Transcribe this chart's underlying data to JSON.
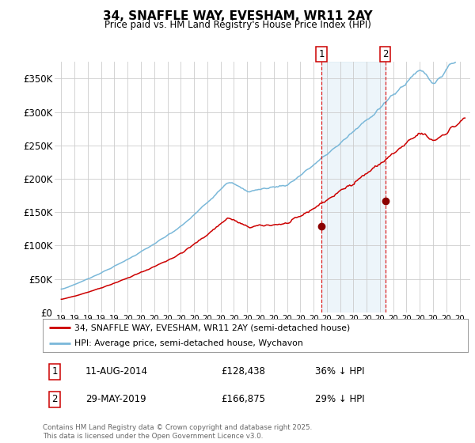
{
  "title": "34, SNAFFLE WAY, EVESHAM, WR11 2AY",
  "subtitle": "Price paid vs. HM Land Registry's House Price Index (HPI)",
  "legend_label_red": "34, SNAFFLE WAY, EVESHAM, WR11 2AY (semi-detached house)",
  "legend_label_blue": "HPI: Average price, semi-detached house, Wychavon",
  "annotation1_date": "11-AUG-2014",
  "annotation1_price": "£128,438",
  "annotation1_hpi": "36% ↓ HPI",
  "annotation1_year": 2014.6,
  "annotation1_value": 128438,
  "annotation2_date": "29-MAY-2019",
  "annotation2_price": "£166,875",
  "annotation2_hpi": "29% ↓ HPI",
  "annotation2_year": 2019.4,
  "annotation2_value": 166875,
  "shade_start": 2014.6,
  "shade_end": 2019.4,
  "hpi_color": "#7ab8d9",
  "price_color": "#cc0000",
  "dot_color": "#8b0000",
  "background_color": "#ffffff",
  "grid_color": "#cccccc",
  "footer": "Contains HM Land Registry data © Crown copyright and database right 2025.\nThis data is licensed under the Open Government Licence v3.0.",
  "ylim": [
    0,
    375000
  ],
  "yticks": [
    0,
    50000,
    100000,
    150000,
    200000,
    250000,
    300000,
    350000
  ],
  "ytick_labels": [
    "£0",
    "£50K",
    "£100K",
    "£150K",
    "£200K",
    "£250K",
    "£300K",
    "£350K"
  ],
  "xlim_start": 1994.5,
  "xlim_end": 2025.8
}
